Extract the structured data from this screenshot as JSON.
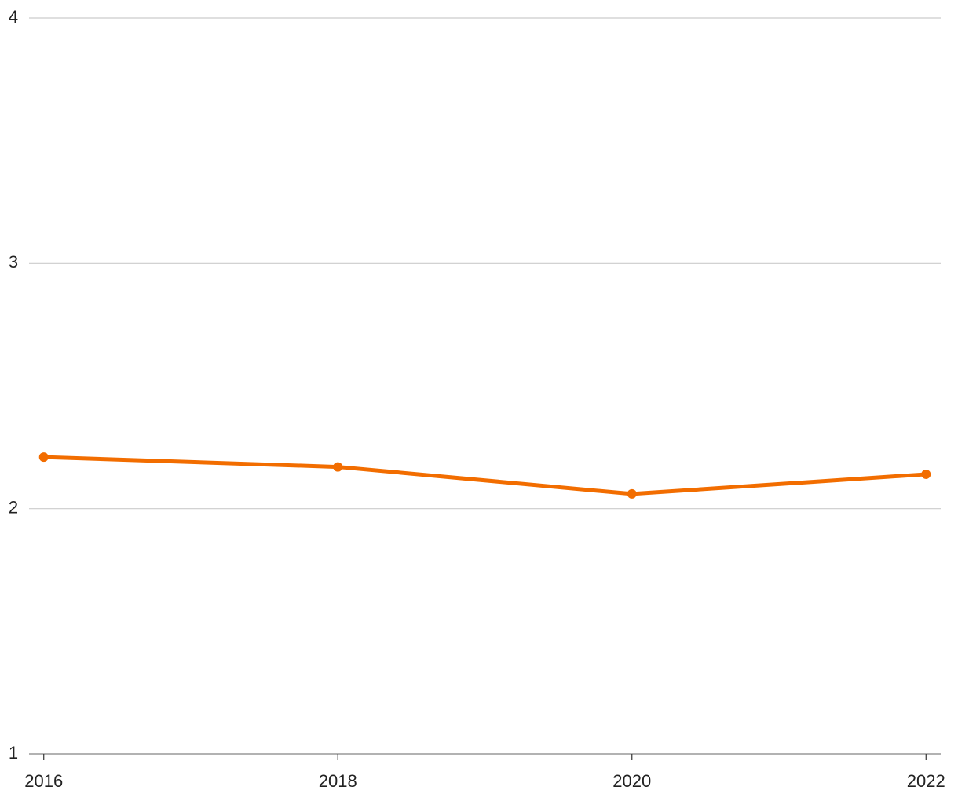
{
  "chart_data": {
    "type": "line",
    "x": [
      2016,
      2018,
      2020,
      2022
    ],
    "values": [
      2.21,
      2.17,
      2.06,
      2.14
    ],
    "color": "#f26d00",
    "xlim": [
      2015.9,
      2022.1
    ],
    "xticks": [
      2016,
      2018,
      2020,
      2022
    ],
    "ylim": [
      1,
      4
    ],
    "yticks": [
      1,
      2,
      3,
      4
    ],
    "grid": true
  }
}
